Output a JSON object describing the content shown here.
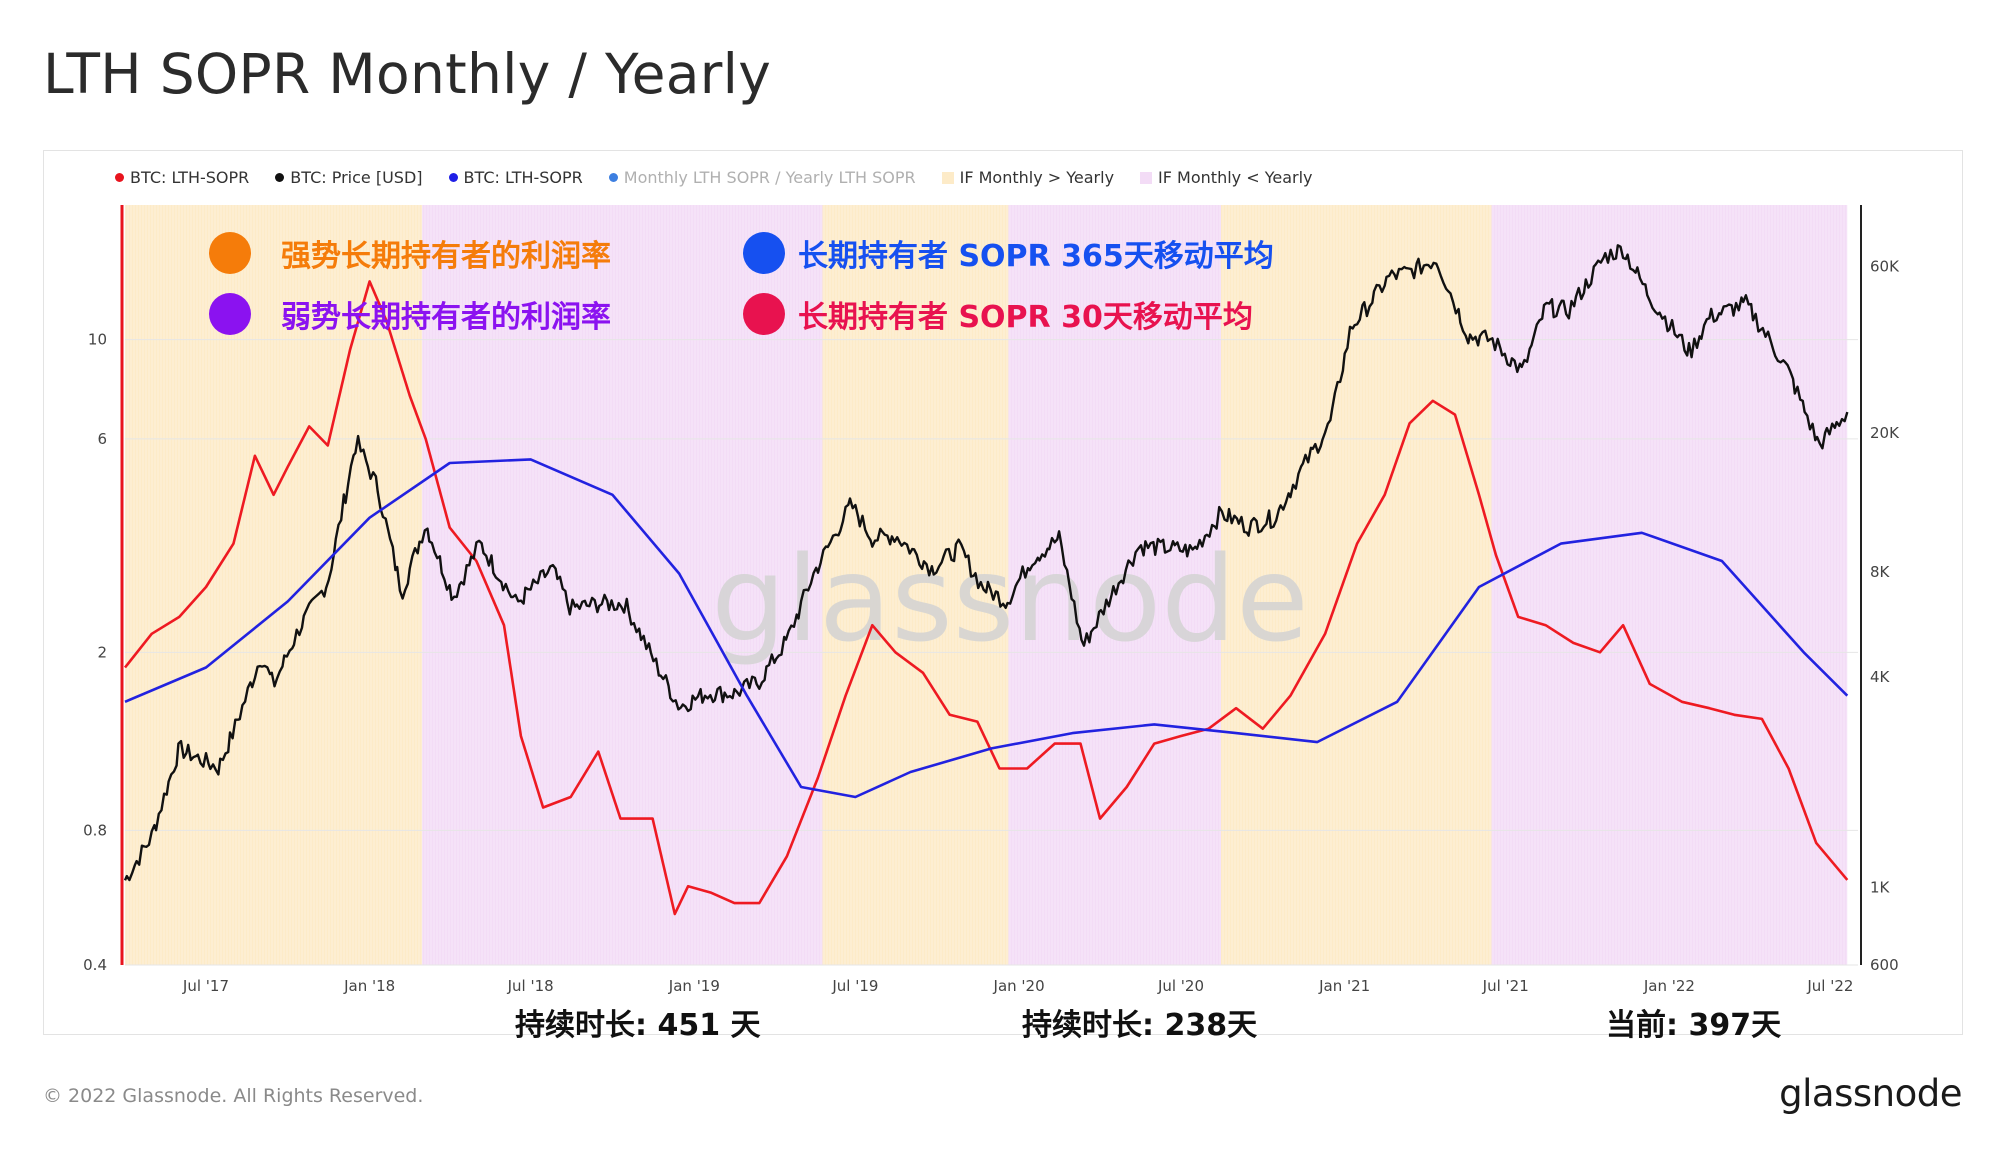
{
  "title": "LTH SOPR Monthly / Yearly",
  "legend": [
    {
      "label": "BTC: LTH-SOPR",
      "color": "#e8141e",
      "kind": "dot",
      "faded": false
    },
    {
      "label": "BTC: Price [USD]",
      "color": "#111111",
      "kind": "dot",
      "faded": false
    },
    {
      "label": "BTC: LTH-SOPR",
      "color": "#1f1fe6",
      "kind": "dot",
      "faded": false
    },
    {
      "label": "Monthly LTH SOPR / Yearly LTH SOPR",
      "color": "#3d7fe0",
      "kind": "dot",
      "faded": true
    },
    {
      "label": "IF Monthly > Yearly",
      "color": "#fdebc8",
      "kind": "square",
      "faded": false
    },
    {
      "label": "IF Monthly < Yearly",
      "color": "#f3dcf6",
      "kind": "square",
      "faded": false
    }
  ],
  "annotations": {
    "strong": {
      "text": "强势长期持有者的利润率",
      "color": "#f57c0a"
    },
    "weak": {
      "text": "弱势长期持有者的利润率",
      "color": "#8b12f0"
    },
    "ma365": {
      "text": "长期持有者 SOPR 365天移动平均",
      "color": "#1650f0"
    },
    "ma30": {
      "text": "长期持有者 SOPR 30天移动平均",
      "color": "#e8124f"
    }
  },
  "durations": [
    "持续时长: 451 天",
    "持续时长: 238天",
    "当前: 397天"
  ],
  "watermark": "glassnode",
  "footer": {
    "copyright": "© 2022 Glassnode. All Rights Reserved.",
    "logo": "glassnode"
  },
  "colors": {
    "sopr30": "#ee1a22",
    "sopr365": "#2222e0",
    "price": "#111111",
    "band_strong": "#fdebc8",
    "band_weak": "#f3dcf6",
    "left_axis": "#e8141e"
  },
  "chart_data": {
    "type": "line",
    "x_range": [
      "2017-04-01",
      "2022-08-01"
    ],
    "x_ticks": [
      "Jul '17",
      "Jan '18",
      "Jul '18",
      "Jan '19",
      "Jul '19",
      "Jan '20",
      "Jul '20",
      "Jan '21",
      "Jul '21",
      "Jan '22",
      "Jul '22"
    ],
    "left_axis": {
      "scale": "log",
      "range": [
        0.4,
        20
      ],
      "ticks": [
        "0.4",
        "0.8",
        "2",
        "6",
        "10"
      ]
    },
    "right_axis": {
      "scale": "log",
      "range": [
        600,
        90000
      ],
      "ticks": [
        "600",
        "1K",
        "4K",
        "8K",
        "20K",
        "60K"
      ]
    },
    "regimes": [
      {
        "start": "2017-04-01",
        "end": "2018-03-01",
        "state": "IF Monthly > Yearly"
      },
      {
        "start": "2018-03-01",
        "end": "2019-05-25",
        "state": "IF Monthly < Yearly"
      },
      {
        "start": "2019-05-25",
        "end": "2019-12-20",
        "state": "IF Monthly > Yearly"
      },
      {
        "start": "2019-12-20",
        "end": "2020-08-15",
        "state": "IF Monthly < Yearly"
      },
      {
        "start": "2020-08-15",
        "end": "2021-06-15",
        "state": "IF Monthly > Yearly"
      },
      {
        "start": "2021-06-15",
        "end": "2022-07-20",
        "state": "IF Monthly < Yearly"
      }
    ],
    "series": [
      {
        "name": "BTC: LTH-SOPR",
        "axis": "left",
        "description": "30-day MA",
        "points": [
          [
            "2017-04-01",
            1.85
          ],
          [
            "2017-05-01",
            2.2
          ],
          [
            "2017-06-01",
            2.4
          ],
          [
            "2017-07-01",
            2.8
          ],
          [
            "2017-08-01",
            3.5
          ],
          [
            "2017-08-25",
            5.5
          ],
          [
            "2017-09-15",
            4.5
          ],
          [
            "2017-10-01",
            5.2
          ],
          [
            "2017-10-25",
            6.4
          ],
          [
            "2017-11-15",
            5.8
          ],
          [
            "2017-12-10",
            9.5
          ],
          [
            "2018-01-01",
            13.5
          ],
          [
            "2018-01-20",
            11.0
          ],
          [
            "2018-02-15",
            7.5
          ],
          [
            "2018-03-05",
            6.0
          ],
          [
            "2018-04-01",
            3.8
          ],
          [
            "2018-05-01",
            3.2
          ],
          [
            "2018-06-01",
            2.3
          ],
          [
            "2018-06-20",
            1.3
          ],
          [
            "2018-07-15",
            0.9
          ],
          [
            "2018-08-15",
            0.95
          ],
          [
            "2018-09-15",
            1.2
          ],
          [
            "2018-10-10",
            0.85
          ],
          [
            "2018-11-15",
            0.85
          ],
          [
            "2018-12-10",
            0.52
          ],
          [
            "2018-12-25",
            0.6
          ],
          [
            "2019-01-20",
            0.58
          ],
          [
            "2019-02-15",
            0.55
          ],
          [
            "2019-03-15",
            0.55
          ],
          [
            "2019-04-15",
            0.7
          ],
          [
            "2019-05-20",
            1.05
          ],
          [
            "2019-06-20",
            1.6
          ],
          [
            "2019-07-20",
            2.3
          ],
          [
            "2019-08-15",
            2.0
          ],
          [
            "2019-09-15",
            1.8
          ],
          [
            "2019-10-15",
            1.45
          ],
          [
            "2019-11-15",
            1.4
          ],
          [
            "2019-12-10",
            1.1
          ],
          [
            "2020-01-10",
            1.1
          ],
          [
            "2020-02-10",
            1.25
          ],
          [
            "2020-03-10",
            1.25
          ],
          [
            "2020-04-01",
            0.85
          ],
          [
            "2020-05-01",
            1.0
          ],
          [
            "2020-06-01",
            1.25
          ],
          [
            "2020-07-01",
            1.3
          ],
          [
            "2020-08-01",
            1.35
          ],
          [
            "2020-09-01",
            1.5
          ],
          [
            "2020-10-01",
            1.35
          ],
          [
            "2020-11-01",
            1.6
          ],
          [
            "2020-12-10",
            2.2
          ],
          [
            "2021-01-15",
            3.5
          ],
          [
            "2021-02-15",
            4.5
          ],
          [
            "2021-03-15",
            6.5
          ],
          [
            "2021-04-10",
            7.3
          ],
          [
            "2021-05-05",
            6.8
          ],
          [
            "2021-06-01",
            4.5
          ],
          [
            "2021-06-20",
            3.3
          ],
          [
            "2021-07-15",
            2.4
          ],
          [
            "2021-08-15",
            2.3
          ],
          [
            "2021-09-15",
            2.1
          ],
          [
            "2021-10-15",
            2.0
          ],
          [
            "2021-11-10",
            2.3
          ],
          [
            "2021-12-10",
            1.7
          ],
          [
            "2022-01-15",
            1.55
          ],
          [
            "2022-02-15",
            1.5
          ],
          [
            "2022-03-15",
            1.45
          ],
          [
            "2022-04-15",
            1.42
          ],
          [
            "2022-05-15",
            1.1
          ],
          [
            "2022-06-15",
            0.75
          ],
          [
            "2022-07-20",
            0.62
          ]
        ]
      },
      {
        "name": "BTC: Price [USD]",
        "axis": "right",
        "points": [
          [
            "2017-04-01",
            1050
          ],
          [
            "2017-05-01",
            1400
          ],
          [
            "2017-06-01",
            2500
          ],
          [
            "2017-07-15",
            2200
          ],
          [
            "2017-08-01",
            2800
          ],
          [
            "2017-09-01",
            4600
          ],
          [
            "2017-09-15",
            3800
          ],
          [
            "2017-10-15",
            5600
          ],
          [
            "2017-11-15",
            7500
          ],
          [
            "2017-12-17",
            19000
          ],
          [
            "2018-01-10",
            14000
          ],
          [
            "2018-02-06",
            7000
          ],
          [
            "2018-03-05",
            11000
          ],
          [
            "2018-04-05",
            6800
          ],
          [
            "2018-05-05",
            9700
          ],
          [
            "2018-06-15",
            6500
          ],
          [
            "2018-07-25",
            8200
          ],
          [
            "2018-08-15",
            6300
          ],
          [
            "2018-09-15",
            6500
          ],
          [
            "2018-10-15",
            6500
          ],
          [
            "2018-11-20",
            4300
          ],
          [
            "2018-12-15",
            3300
          ],
          [
            "2019-01-15",
            3600
          ],
          [
            "2019-02-15",
            3600
          ],
          [
            "2019-03-15",
            3900
          ],
          [
            "2019-04-15",
            5100
          ],
          [
            "2019-05-15",
            7900
          ],
          [
            "2019-06-26",
            12500
          ],
          [
            "2019-07-20",
            10000
          ],
          [
            "2019-08-15",
            10200
          ],
          [
            "2019-09-25",
            8200
          ],
          [
            "2019-10-26",
            9400
          ],
          [
            "2019-11-20",
            7300
          ],
          [
            "2019-12-18",
            6600
          ],
          [
            "2020-01-15",
            8700
          ],
          [
            "2020-02-15",
            10000
          ],
          [
            "2020-03-13",
            4900
          ],
          [
            "2020-04-15",
            7000
          ],
          [
            "2020-05-15",
            9500
          ],
          [
            "2020-06-15",
            9400
          ],
          [
            "2020-07-15",
            9200
          ],
          [
            "2020-08-15",
            11800
          ],
          [
            "2020-09-15",
            10800
          ],
          [
            "2020-10-15",
            11500
          ],
          [
            "2020-11-15",
            16000
          ],
          [
            "2020-12-15",
            21000
          ],
          [
            "2021-01-08",
            40000
          ],
          [
            "2021-02-20",
            56000
          ],
          [
            "2021-03-15",
            58000
          ],
          [
            "2021-04-14",
            63000
          ],
          [
            "2021-05-20",
            38000
          ],
          [
            "2021-06-15",
            37000
          ],
          [
            "2021-07-20",
            30000
          ],
          [
            "2021-08-15",
            46000
          ],
          [
            "2021-09-10",
            45000
          ],
          [
            "2021-10-20",
            64000
          ],
          [
            "2021-11-10",
            67500
          ],
          [
            "2021-12-10",
            49000
          ],
          [
            "2022-01-24",
            34000
          ],
          [
            "2022-02-15",
            43000
          ],
          [
            "2022-03-28",
            47000
          ],
          [
            "2022-04-15",
            40000
          ],
          [
            "2022-05-15",
            30000
          ],
          [
            "2022-06-18",
            18500
          ],
          [
            "2022-07-20",
            23000
          ]
        ]
      },
      {
        "name": "BTC: LTH-SOPR",
        "axis": "left",
        "description": "365-day MA",
        "points": [
          [
            "2017-04-01",
            1.55
          ],
          [
            "2017-07-01",
            1.85
          ],
          [
            "2017-10-01",
            2.6
          ],
          [
            "2018-01-01",
            4.0
          ],
          [
            "2018-04-01",
            5.3
          ],
          [
            "2018-07-01",
            5.4
          ],
          [
            "2018-10-01",
            4.5
          ],
          [
            "2018-12-15",
            3.0
          ],
          [
            "2019-03-01",
            1.6
          ],
          [
            "2019-05-01",
            1.0
          ],
          [
            "2019-07-01",
            0.95
          ],
          [
            "2019-09-01",
            1.08
          ],
          [
            "2019-12-01",
            1.22
          ],
          [
            "2020-03-01",
            1.32
          ],
          [
            "2020-06-01",
            1.38
          ],
          [
            "2020-09-01",
            1.32
          ],
          [
            "2020-12-01",
            1.26
          ],
          [
            "2021-03-01",
            1.55
          ],
          [
            "2021-06-01",
            2.8
          ],
          [
            "2021-09-01",
            3.5
          ],
          [
            "2021-12-01",
            3.7
          ],
          [
            "2022-03-01",
            3.2
          ],
          [
            "2022-06-01",
            2.0
          ],
          [
            "2022-07-20",
            1.6
          ]
        ]
      }
    ]
  }
}
